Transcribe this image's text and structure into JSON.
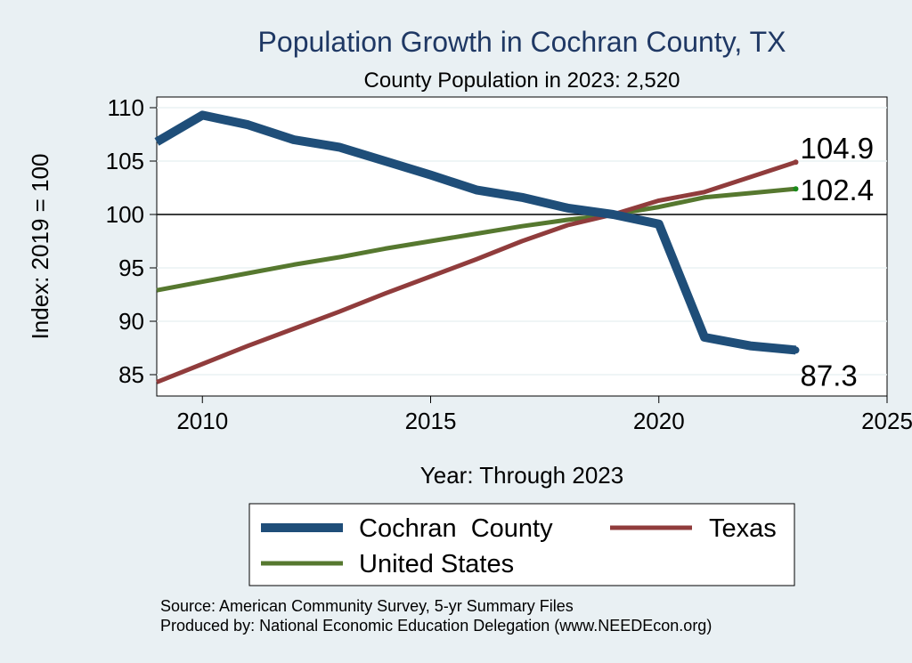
{
  "chart_data": {
    "type": "line",
    "title": "Population Growth in Cochran County, TX",
    "subtitle": "County Population in 2023: 2,520",
    "xlabel": "Year: Through 2023",
    "ylabel": "Index: 2019 = 100",
    "xlim": [
      2009,
      2025
    ],
    "ylim": [
      83,
      111
    ],
    "xticks": [
      2010,
      2015,
      2020,
      2025
    ],
    "yticks": [
      85,
      90,
      95,
      100,
      105,
      110
    ],
    "reference_line": 100,
    "grid": true,
    "legend_position": "bottom",
    "x": [
      2009,
      2010,
      2011,
      2012,
      2013,
      2014,
      2015,
      2016,
      2017,
      2018,
      2019,
      2020,
      2021,
      2022,
      2023
    ],
    "series": [
      {
        "name": "Cochran  County",
        "color": "#1f4e79",
        "values": [
          106.8,
          109.3,
          108.4,
          107.0,
          106.3,
          105.0,
          103.7,
          102.3,
          101.6,
          100.6,
          100.0,
          99.1,
          88.5,
          87.7,
          87.3
        ],
        "end_label": "87.3"
      },
      {
        "name": "Texas",
        "color": "#903c3c",
        "values": [
          84.3,
          86.0,
          87.7,
          89.3,
          90.9,
          92.6,
          94.2,
          95.8,
          97.5,
          99.0,
          100.0,
          101.3,
          102.1,
          103.5,
          104.9
        ],
        "end_label": "104.9"
      },
      {
        "name": "United States",
        "color": "#56782f",
        "values": [
          92.9,
          93.7,
          94.5,
          95.3,
          96.0,
          96.8,
          97.5,
          98.2,
          98.9,
          99.5,
          100.0,
          100.7,
          101.6,
          102.0,
          102.4
        ],
        "end_label": "102.4"
      }
    ],
    "source": "Source: American Community Survey, 5-yr Summary Files",
    "produced_by": "Produced by: National Economic Education Delegation (www.NEEDEcon.org)"
  }
}
